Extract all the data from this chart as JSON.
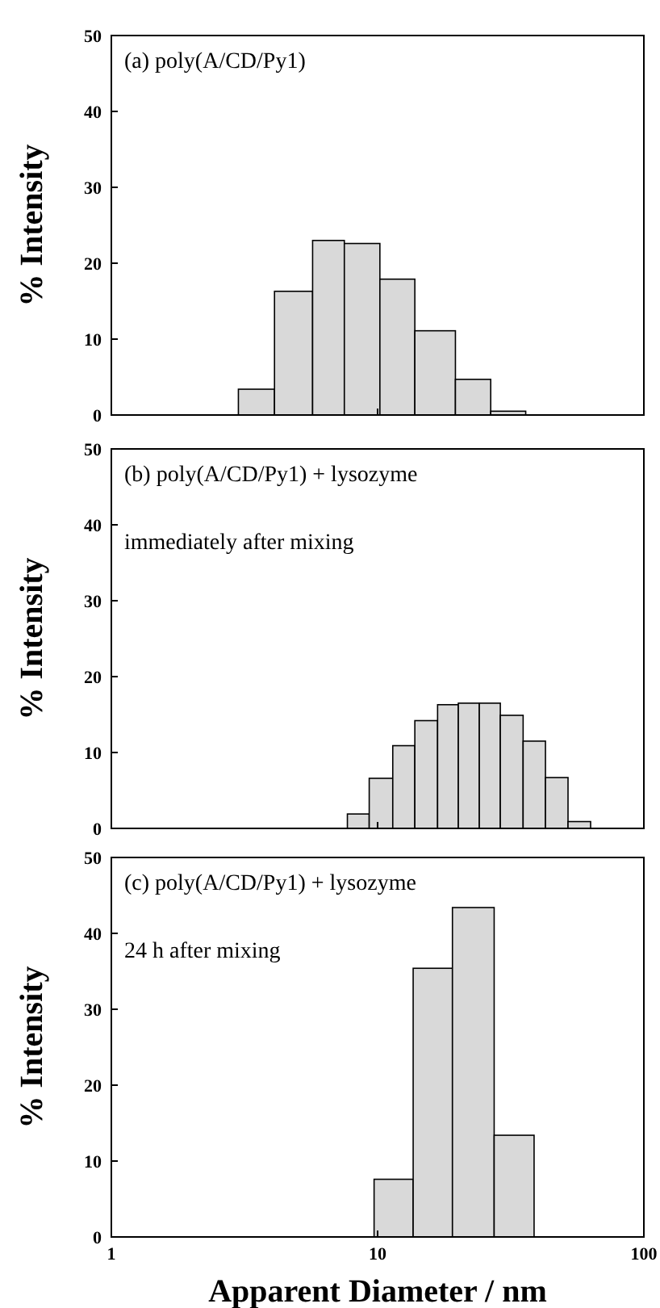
{
  "chart_data": [
    {
      "type": "histogram",
      "annotations": [
        "(a) poly(A/CD/Py1)"
      ],
      "ylabel": "% Intensity",
      "bins": [
        3,
        4.1,
        5.7,
        7.5,
        10.2,
        13.8,
        19.6,
        26.6,
        36
      ],
      "values": [
        3.4,
        16.3,
        23,
        22.6,
        17.9,
        11.1,
        4.7,
        0.5
      ],
      "color": "#d9d9d9",
      "xlim": [
        1,
        100
      ],
      "xticks": [
        1,
        10,
        100
      ],
      "ylim": [
        0,
        50
      ],
      "yticks": [
        0,
        10,
        20,
        30,
        40,
        50
      ],
      "log": "x",
      "tick_labels": "y"
    },
    {
      "type": "histogram",
      "annotations": [
        "(b) poly(A/CD/Py1) + lysozyme",
        "immediately after mixing"
      ],
      "ylabel": "% Intensity",
      "bins": [
        7.7,
        9.3,
        11.4,
        13.8,
        16.8,
        20.1,
        24.1,
        28.9,
        35.2,
        42.7,
        51.9,
        63.1
      ],
      "values": [
        1.9,
        6.6,
        10.9,
        14.2,
        16.3,
        16.5,
        16.5,
        14.9,
        11.5,
        6.7,
        0.9
      ],
      "color": "#d9d9d9",
      "xlim": [
        1,
        100
      ],
      "xticks": [
        1,
        10,
        100
      ],
      "ylim": [
        0,
        50
      ],
      "yticks": [
        0,
        10,
        20,
        30,
        40,
        50
      ],
      "log": "x",
      "tick_labels": "y"
    },
    {
      "type": "histogram",
      "annotations": [
        "(c) poly(A/CD/Py1) + lysozyme",
        "24 h after mixing"
      ],
      "xlabel": "Apparent Diameter / nm",
      "ylabel": "% Intensity",
      "bins": [
        9.7,
        13.6,
        19.1,
        27.4,
        38.7
      ],
      "values": [
        7.6,
        35.4,
        43.4,
        13.4
      ],
      "color": "#d9d9d9",
      "xlim": [
        1,
        100
      ],
      "xticks": [
        1,
        10,
        100
      ],
      "ylim": [
        0,
        50
      ],
      "yticks": [
        0,
        10,
        20,
        30,
        40,
        50
      ],
      "log": "x"
    }
  ]
}
